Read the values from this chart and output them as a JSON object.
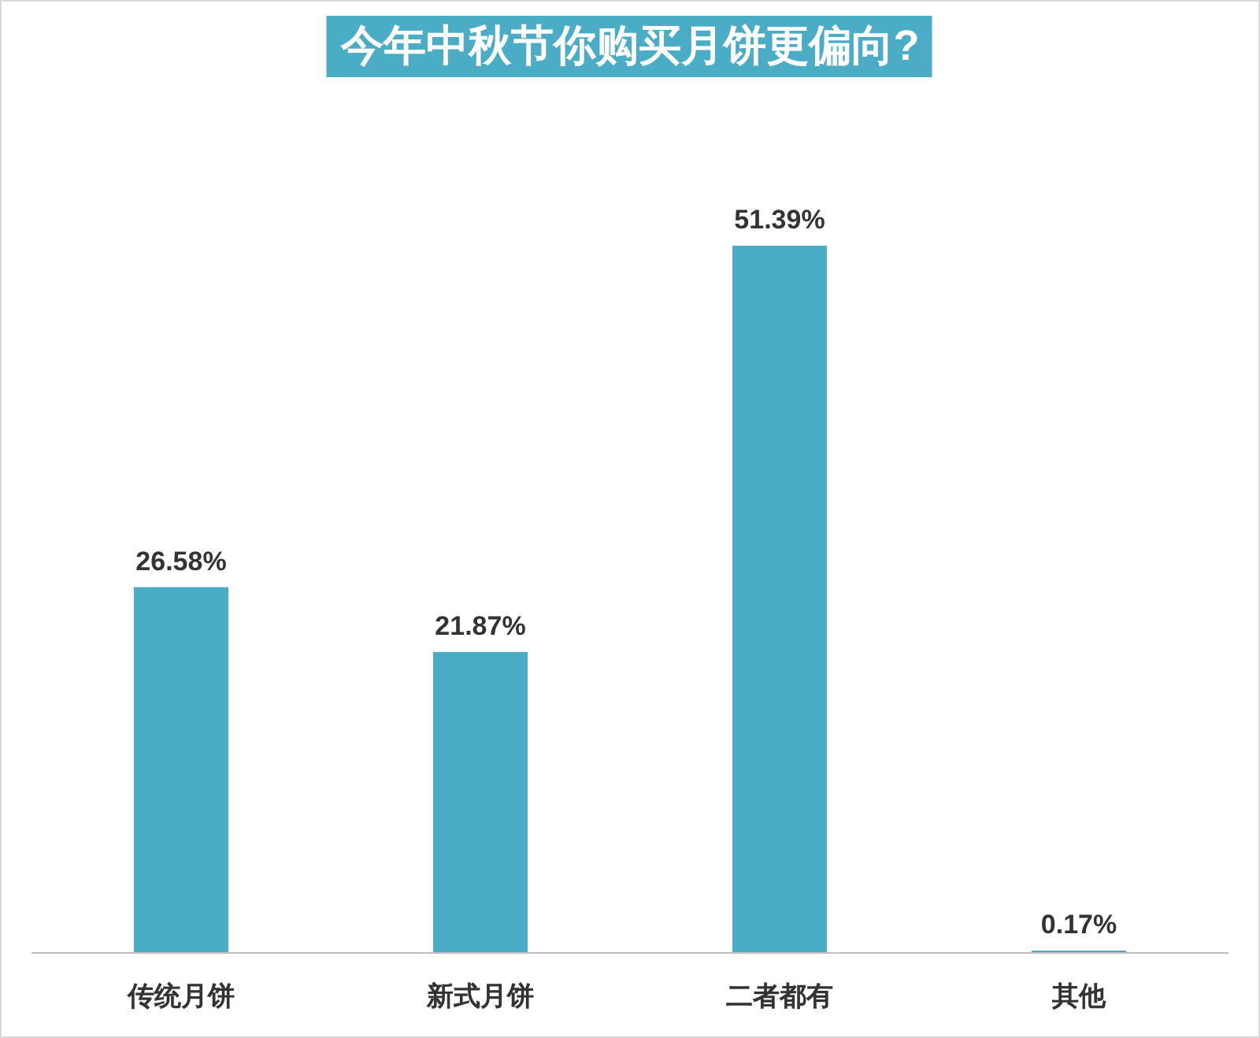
{
  "chart_data": {
    "type": "bar",
    "title": "今年中秋节你购买月饼更偏向?",
    "categories": [
      "传统月饼",
      "新式月饼",
      "二者都有",
      "其他"
    ],
    "values": [
      26.58,
      21.87,
      51.39,
      0.17
    ],
    "value_labels": [
      "26.58%",
      "21.87%",
      "51.39%",
      "0.17%"
    ],
    "color": "#4bacc6"
  }
}
